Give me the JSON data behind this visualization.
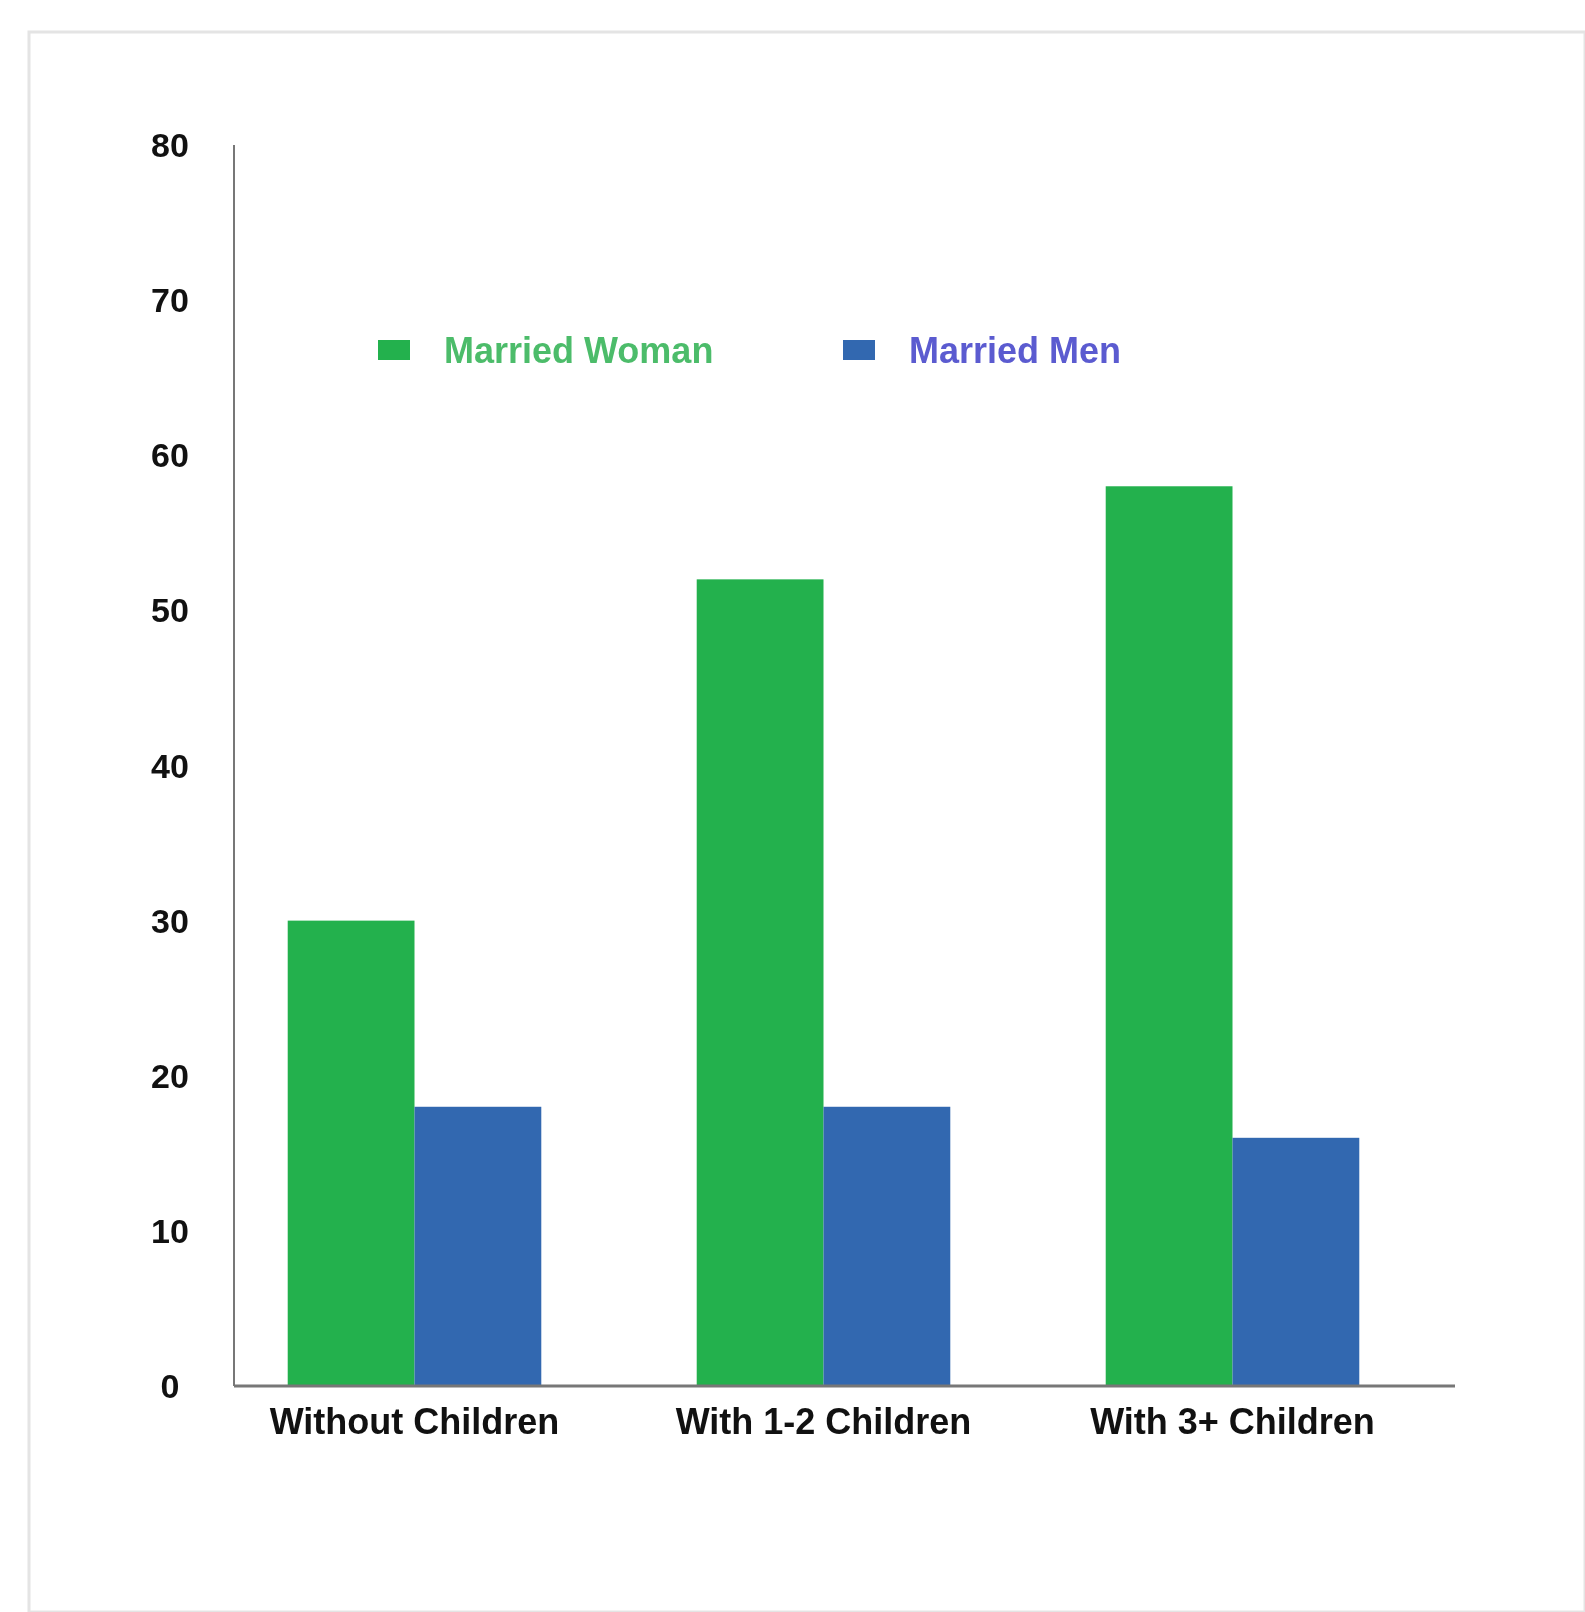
{
  "chart_data": {
    "type": "bar",
    "categories": [
      "Without Children",
      "With 1-2 Children",
      "With 3+ Children"
    ],
    "series": [
      {
        "name": "Married Woman",
        "color": "#23b14d",
        "values": [
          30,
          52,
          58
        ]
      },
      {
        "name": "Married Men",
        "color": "#3268b0",
        "values": [
          18,
          18,
          16
        ]
      }
    ],
    "ylim": [
      0,
      80
    ],
    "yticks": [
      0,
      10,
      20,
      30,
      40,
      50,
      60,
      70,
      80
    ],
    "grid": false,
    "legend": "top left"
  }
}
